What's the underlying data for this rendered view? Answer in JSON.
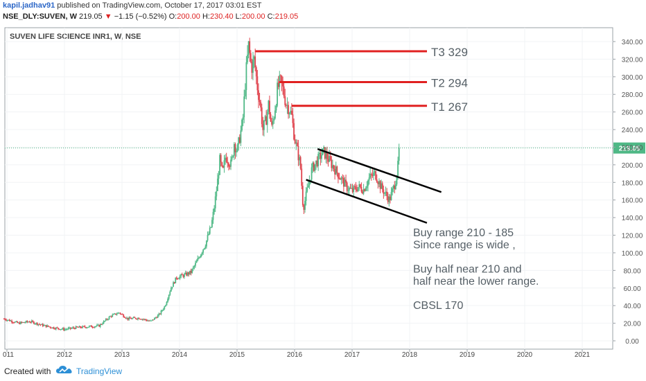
{
  "header": {
    "user": "kapil.jadhav91",
    "published": "published on TradingView.com, October 17, 2017 03:01 EST",
    "symbol": "NSE_DLY:SUVEN, W",
    "last": "219.05",
    "change": "−1.15 (−0.52%)",
    "o_label": "O:",
    "o_val": "200.00",
    "h_label": "H:",
    "h_val": "230.40",
    "l_label": "L:",
    "l_val": "200.00",
    "c_label": "C:",
    "c_val": "219.05"
  },
  "chart_data": {
    "type": "candlestick",
    "title": "SUVEN LIFE SCIENCE INR1, W, NSE",
    "x_ticks": [
      "011",
      "2012",
      "2013",
      "2014",
      "2015",
      "2016",
      "2017",
      "2018",
      "2019",
      "2020",
      "2021"
    ],
    "y_ticks": [
      "340.00",
      "320.00",
      "300.00",
      "280.00",
      "260.00",
      "240.00",
      "220.00",
      "200.00",
      "180.00",
      "160.00",
      "140.00",
      "120.00",
      "100.00",
      "80.00",
      "60.00",
      "40.00",
      "20.00",
      "0.00"
    ],
    "ylim": [
      -5,
      350
    ],
    "last_price_label": "219.05",
    "last_price": 219.05,
    "price_path": [
      [
        2010.95,
        25
      ],
      [
        2011.2,
        20
      ],
      [
        2011.4,
        22
      ],
      [
        2011.6,
        18
      ],
      [
        2011.8,
        15
      ],
      [
        2012.0,
        13
      ],
      [
        2012.2,
        15
      ],
      [
        2012.4,
        16
      ],
      [
        2012.6,
        17
      ],
      [
        2012.8,
        28
      ],
      [
        2012.95,
        32
      ],
      [
        2013.1,
        25
      ],
      [
        2013.3,
        26
      ],
      [
        2013.5,
        22
      ],
      [
        2013.65,
        30
      ],
      [
        2013.75,
        40
      ],
      [
        2013.85,
        60
      ],
      [
        2013.95,
        72
      ],
      [
        2014.1,
        75
      ],
      [
        2014.2,
        78
      ],
      [
        2014.3,
        90
      ],
      [
        2014.45,
        110
      ],
      [
        2014.55,
        130
      ],
      [
        2014.6,
        150
      ],
      [
        2014.65,
        175
      ],
      [
        2014.7,
        205
      ],
      [
        2014.75,
        190
      ],
      [
        2014.8,
        210
      ],
      [
        2014.9,
        200
      ],
      [
        2014.95,
        225
      ],
      [
        2015.0,
        215
      ],
      [
        2015.1,
        250
      ],
      [
        2015.15,
        300
      ],
      [
        2015.2,
        335
      ],
      [
        2015.25,
        310
      ],
      [
        2015.3,
        320
      ],
      [
        2015.35,
        290
      ],
      [
        2015.4,
        270
      ],
      [
        2015.45,
        240
      ],
      [
        2015.5,
        250
      ],
      [
        2015.55,
        270
      ],
      [
        2015.6,
        240
      ],
      [
        2015.65,
        260
      ],
      [
        2015.7,
        285
      ],
      [
        2015.75,
        295
      ],
      [
        2015.8,
        285
      ],
      [
        2015.85,
        270
      ],
      [
        2015.9,
        265
      ],
      [
        2015.95,
        255
      ],
      [
        2016.0,
        230
      ],
      [
        2016.1,
        200
      ],
      [
        2016.15,
        150
      ],
      [
        2016.2,
        165
      ],
      [
        2016.3,
        195
      ],
      [
        2016.4,
        205
      ],
      [
        2016.5,
        215
      ],
      [
        2016.6,
        205
      ],
      [
        2016.7,
        195
      ],
      [
        2016.8,
        185
      ],
      [
        2016.9,
        175
      ],
      [
        2017.0,
        170
      ],
      [
        2017.1,
        175
      ],
      [
        2017.2,
        172
      ],
      [
        2017.3,
        185
      ],
      [
        2017.4,
        190
      ],
      [
        2017.5,
        175
      ],
      [
        2017.6,
        165
      ],
      [
        2017.65,
        160
      ],
      [
        2017.7,
        170
      ],
      [
        2017.75,
        180
      ],
      [
        2017.8,
        200
      ],
      [
        2017.83,
        219.05
      ]
    ],
    "bullish_color": "#4fb886",
    "bearish_color": "#e0424c",
    "targets": [
      {
        "label": "T3 329",
        "value": 329
      },
      {
        "label": "T2 294",
        "value": 294
      },
      {
        "label": "T1 267",
        "value": 267
      }
    ],
    "target_color": "#e02020",
    "channel": [
      {
        "from": [
          2016.4,
          218
        ],
        "to": [
          2018.55,
          169
        ]
      },
      {
        "from": [
          2016.2,
          183
        ],
        "to": [
          2018.3,
          134
        ]
      }
    ],
    "notes": [
      "Buy range 210 - 185",
      "Since range is wide ,",
      "",
      "Buy half near 210 and",
      "half near the lower range.",
      "",
      "CBSL 170"
    ]
  },
  "footer": {
    "created": "Created with",
    "brand": "TradingView",
    "brand_color": "#2c8fd6"
  }
}
